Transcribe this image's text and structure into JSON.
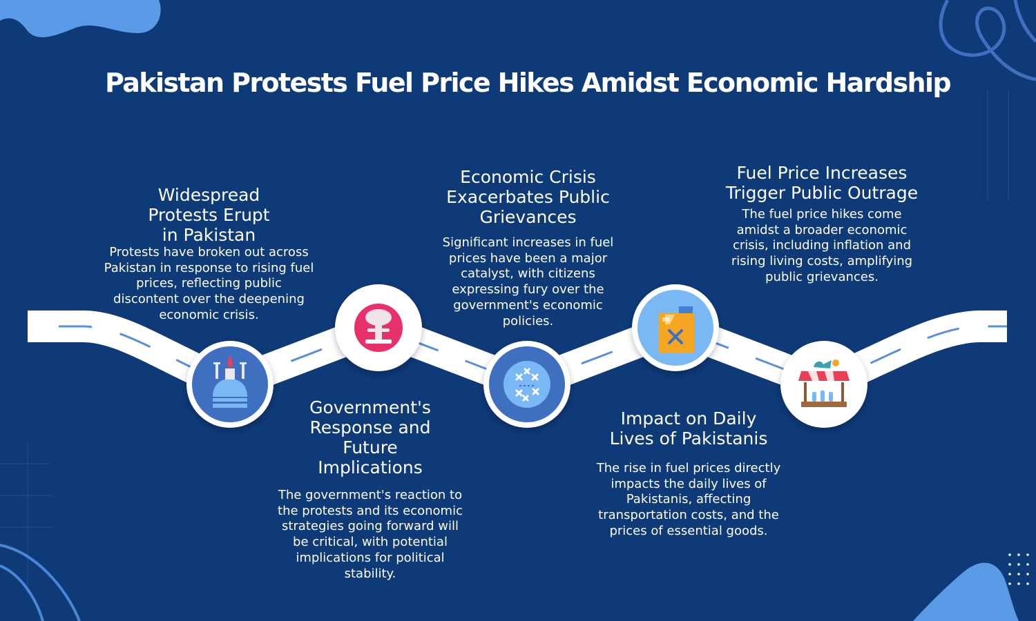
{
  "title": "Pakistan Protests Fuel Price Hikes Amidst Economic Hardship",
  "colors": {
    "background": "#0e3a78",
    "road": "#ffffff",
    "road_dash": "#5a8fd6",
    "accent_blob": "#5a9be8"
  },
  "steps": [
    {
      "heading": "Widespread Protests Erupt in Pakistan",
      "body": "Protests have broken out across Pakistan in response to rising fuel prices, reflecting public discontent over the deepening economic crisis.",
      "icon": "protest-dome-icon"
    },
    {
      "heading": "Government's Response and Future Implications",
      "body": "The government's reaction to the protests and its economic strategies going forward will be critical, with potential implications for political stability.",
      "icon": "explosion-icon"
    },
    {
      "heading": "Economic Crisis Exacerbates Public Grievances",
      "body": "Significant increases in fuel prices have been a major catalyst, with citizens expressing fury over the government's economic policies.",
      "icon": "strategy-board-icon"
    },
    {
      "heading": "Impact on Daily Lives of Pakistanis",
      "body": "The rise in fuel prices directly impacts the daily lives of Pakistanis, affecting transportation costs, and the prices of essential goods.",
      "icon": "fuel-can-icon"
    },
    {
      "heading": "Fuel Price Increases Trigger Public Outrage",
      "body": "The fuel price hikes come amidst a broader economic crisis, including inflation and rising living costs, amplifying public grievances.",
      "icon": "market-stall-icon"
    }
  ]
}
